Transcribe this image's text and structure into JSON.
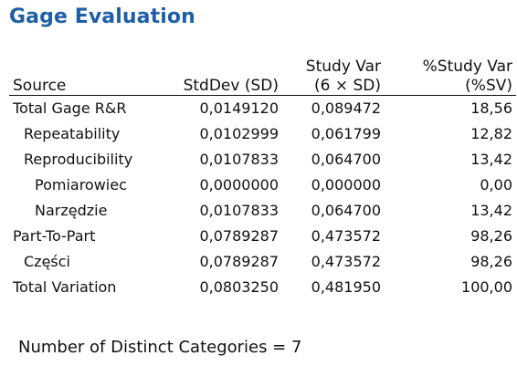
{
  "title": "Gage Evaluation",
  "table": {
    "headers": {
      "source": "Source",
      "stddev": "StdDev (SD)",
      "studyvar_line1": "Study Var",
      "studyvar_line2": "(6 × SD)",
      "pct_studyvar_line1": "%Study Var",
      "pct_studyvar_line2": "(%SV)"
    },
    "rows": [
      {
        "source": "Total Gage R&R",
        "stddev": "0,0149120",
        "studyvar": "0,089472",
        "pct_studyvar": "18,56",
        "indent": 0
      },
      {
        "source": "Repeatability",
        "stddev": "0,0102999",
        "studyvar": "0,061799",
        "pct_studyvar": "12,82",
        "indent": 1
      },
      {
        "source": "Reproducibility",
        "stddev": "0,0107833",
        "studyvar": "0,064700",
        "pct_studyvar": "13,42",
        "indent": 1
      },
      {
        "source": "Pomiarowiec",
        "stddev": "0,0000000",
        "studyvar": "0,000000",
        "pct_studyvar": "0,00",
        "indent": 2
      },
      {
        "source": "Narzędzie",
        "stddev": "0,0107833",
        "studyvar": "0,064700",
        "pct_studyvar": "13,42",
        "indent": 2
      },
      {
        "source": "Part-To-Part",
        "stddev": "0,0789287",
        "studyvar": "0,473572",
        "pct_studyvar": "98,26",
        "indent": 0
      },
      {
        "source": "Części",
        "stddev": "0,0789287",
        "studyvar": "0,473572",
        "pct_studyvar": "98,26",
        "indent": 1
      },
      {
        "source": "Total Variation",
        "stddev": "0,0803250",
        "studyvar": "0,481950",
        "pct_studyvar": "100,00",
        "indent": 0
      }
    ]
  },
  "ndc_text": "Number of Distinct Categories = 7",
  "colors": {
    "title": "#1f5fa6",
    "text": "#111111",
    "background": "#ffffff"
  }
}
